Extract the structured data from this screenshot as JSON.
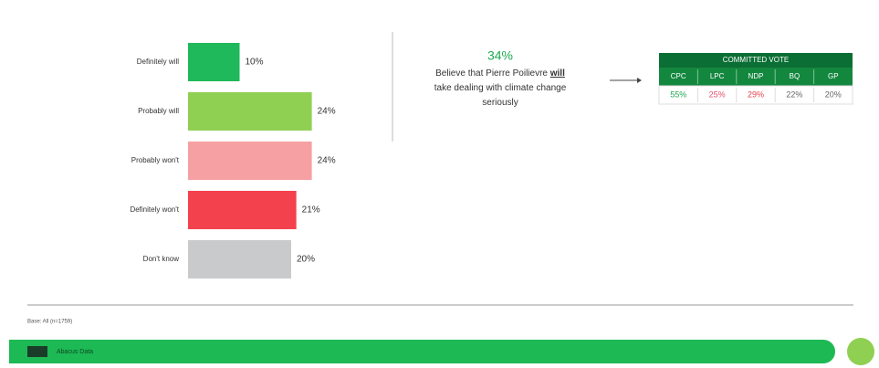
{
  "chart_data": {
    "type": "bar",
    "orientation": "horizontal",
    "categories": [
      "Definitely will",
      "Probably will",
      "Probably won't",
      "Definitely won't",
      "Don't know"
    ],
    "values": [
      10,
      24,
      24,
      21,
      20
    ],
    "value_labels": [
      "10%",
      "24%",
      "24%",
      "21%",
      "20%"
    ],
    "colors": [
      "#1fb85a",
      "#8fcf52",
      "#f6a0a3",
      "#f3424d",
      "#c9cacb"
    ]
  },
  "callout": {
    "value": "34%",
    "text_before": "Believe that Pierre Poilievre ",
    "text_bold": "will",
    "text_after": " take dealing with climate change seriously"
  },
  "table": {
    "title": "COMMITTED VOTE",
    "columns": [
      "CPC",
      "LPC",
      "NDP",
      "BQ",
      "GP"
    ],
    "values": [
      "55%",
      "25%",
      "29%",
      "22%",
      "20%"
    ],
    "colors": [
      "#1fa84f",
      "#e8506a",
      "#e8404a",
      "#666666",
      "#666666"
    ]
  },
  "footer": {
    "note": "Base: All (n=1759)",
    "banner": "Abacus Data"
  }
}
